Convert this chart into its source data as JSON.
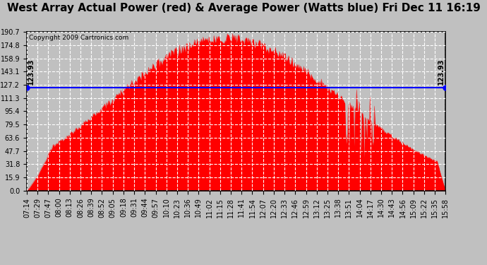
{
  "title": "West Array Actual Power (red) & Average Power (Watts blue) Fri Dec 11 16:19",
  "copyright": "Copyright 2009 Cartronics.com",
  "average_power": 123.93,
  "y_max": 190.7,
  "y_ticks": [
    0.0,
    15.9,
    31.8,
    47.7,
    63.6,
    79.5,
    95.4,
    111.3,
    127.2,
    143.1,
    158.9,
    174.8,
    190.7
  ],
  "x_labels": [
    "07:14",
    "07:29",
    "07:47",
    "08:00",
    "08:13",
    "08:26",
    "08:39",
    "08:52",
    "09:05",
    "09:18",
    "09:31",
    "09:44",
    "09:57",
    "10:10",
    "10:23",
    "10:36",
    "10:49",
    "11:02",
    "11:15",
    "11:28",
    "11:41",
    "11:54",
    "12:07",
    "12:20",
    "12:33",
    "12:46",
    "12:59",
    "13:12",
    "13:25",
    "13:38",
    "13:51",
    "14:04",
    "14:17",
    "14:30",
    "14:43",
    "14:56",
    "15:09",
    "15:22",
    "15:35",
    "15:58"
  ],
  "background_color": "#c0c0c0",
  "plot_background": "#c0c0c0",
  "bar_color": "#ff0000",
  "line_color": "#0000ff",
  "grid_color": "#ffffff",
  "title_fontsize": 11,
  "tick_fontsize": 7,
  "avg_label": "123.93",
  "peak_power": 190.0,
  "n_points": 500
}
